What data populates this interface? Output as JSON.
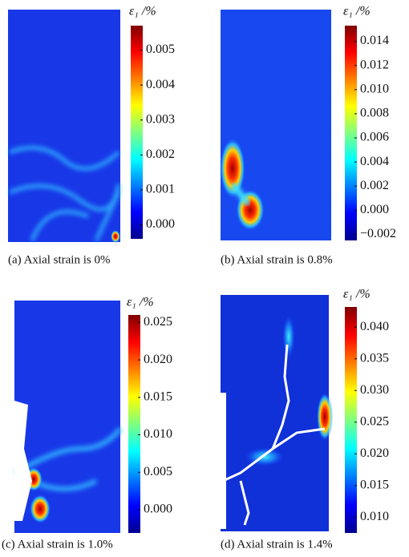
{
  "chart_data": [
    {
      "type": "heatmap",
      "caption": "(a) Axial strain is 0%",
      "colorbar_label": "ε₁ /%",
      "zlim": [
        -0.0004,
        0.0057
      ],
      "zticks": [
        {
          "value": 0.005,
          "label": "0.005"
        },
        {
          "value": 0.004,
          "label": "0.004"
        },
        {
          "value": 0.003,
          "label": "0.003"
        },
        {
          "value": 0.002,
          "label": "0.002"
        },
        {
          "value": 0.001,
          "label": "0.001"
        },
        {
          "value": 0,
          "label": "0.000"
        }
      ]
    },
    {
      "type": "heatmap",
      "caption": "(b) Axial strain is 0.8%",
      "colorbar_label": "ε₁ /%",
      "zlim": [
        -0.0025,
        0.0153
      ],
      "zticks": [
        {
          "value": 0.014,
          "label": "0.014"
        },
        {
          "value": 0.012,
          "label": "0.012"
        },
        {
          "value": 0.01,
          "label": "0.010"
        },
        {
          "value": 0.008,
          "label": "0.008"
        },
        {
          "value": 0.006,
          "label": "0.006"
        },
        {
          "value": 0.004,
          "label": "0.004"
        },
        {
          "value": 0.002,
          "label": "0.002"
        },
        {
          "value": 0,
          "label": "0.000"
        },
        {
          "value": -0.002,
          "label": "−0.002"
        }
      ]
    },
    {
      "type": "heatmap",
      "caption": "(c) Axial strain is 1.0%",
      "colorbar_label": "ε₁ /%",
      "zlim": [
        -0.0031,
        0.026
      ],
      "zticks": [
        {
          "value": 0.025,
          "label": "0.025"
        },
        {
          "value": 0.02,
          "label": "0.020"
        },
        {
          "value": 0.015,
          "label": "0.015"
        },
        {
          "value": 0.01,
          "label": "0.010"
        },
        {
          "value": 0.005,
          "label": "0.005"
        },
        {
          "value": 0,
          "label": "0.000"
        }
      ]
    },
    {
      "type": "heatmap",
      "caption": "(d) Axial strain is 1.4%",
      "colorbar_label": "ε₁ /%",
      "zlim": [
        0.0075,
        0.0432
      ],
      "zticks": [
        {
          "value": 0.04,
          "label": "0.040"
        },
        {
          "value": 0.035,
          "label": "0.035"
        },
        {
          "value": 0.03,
          "label": "0.030"
        },
        {
          "value": 0.025,
          "label": "0.025"
        },
        {
          "value": 0.02,
          "label": "0.020"
        },
        {
          "value": 0.015,
          "label": "0.015"
        },
        {
          "value": 0.01,
          "label": "0.010"
        }
      ]
    }
  ]
}
